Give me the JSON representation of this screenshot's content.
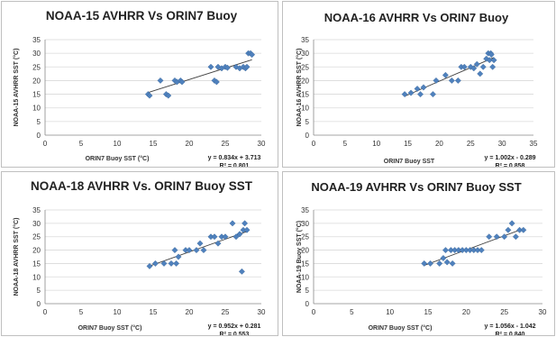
{
  "chart_data": [
    {
      "type": "scatter",
      "title": "NOAA-15 AVHRR Vs ORIN7 Buoy",
      "xlabel": "ORIN7 Buoy SST (°C)",
      "ylabel": "NOAA-15 AVHRR SST (°C)",
      "xlim": [
        0,
        30
      ],
      "ylim": [
        0,
        35
      ],
      "xticks": [
        0,
        5,
        10,
        15,
        20,
        25,
        30
      ],
      "yticks": [
        0,
        5,
        10,
        15,
        20,
        25,
        30,
        35
      ],
      "trendline": {
        "slope": 0.834,
        "intercept": 3.713
      },
      "equation": "y = 0.834x + 3.713",
      "r2": "R² = 0.801",
      "marker_color": "#4f81bd",
      "points": [
        [
          14.3,
          15
        ],
        [
          14.5,
          14.5
        ],
        [
          16,
          20
        ],
        [
          16.8,
          15
        ],
        [
          17.1,
          14.5
        ],
        [
          18,
          20
        ],
        [
          18.3,
          19.5
        ],
        [
          18.8,
          20
        ],
        [
          19,
          19.5
        ],
        [
          23,
          25
        ],
        [
          23.5,
          20
        ],
        [
          23.8,
          19.5
        ],
        [
          24,
          25
        ],
        [
          24.5,
          24.5
        ],
        [
          25,
          25
        ],
        [
          25.3,
          24.7
        ],
        [
          26.5,
          25
        ],
        [
          27,
          24.5
        ],
        [
          27.5,
          25
        ],
        [
          27.8,
          24.5
        ],
        [
          28,
          25
        ],
        [
          28.2,
          30
        ],
        [
          28.5,
          30
        ],
        [
          28.7,
          29.5
        ]
      ]
    },
    {
      "type": "scatter",
      "title": "NOAA-16 AVHRR Vs ORIN7 Buoy",
      "xlabel": "ORIN7 Buoy SST",
      "ylabel": "NOAA-16 AVHRR SST (°C)",
      "xlim": [
        0,
        35
      ],
      "ylim": [
        0,
        35
      ],
      "xticks": [
        0,
        5,
        10,
        15,
        20,
        25,
        30,
        35
      ],
      "yticks": [
        0,
        5,
        10,
        15,
        20,
        25,
        30,
        35
      ],
      "trendline": {
        "slope": 1.002,
        "intercept": -0.289
      },
      "equation": "y = 1.002x - 0.289",
      "r2": "R² = 0.858",
      "marker_color": "#4f81bd",
      "points": [
        [
          14.5,
          15
        ],
        [
          15.5,
          15.5
        ],
        [
          16.5,
          17
        ],
        [
          17,
          15
        ],
        [
          17.5,
          17.5
        ],
        [
          19,
          15
        ],
        [
          19.5,
          20
        ],
        [
          21,
          22
        ],
        [
          22,
          20
        ],
        [
          23,
          20
        ],
        [
          23.5,
          25
        ],
        [
          24,
          25
        ],
        [
          25,
          25
        ],
        [
          25.5,
          24.5
        ],
        [
          26,
          26
        ],
        [
          26.5,
          22.5
        ],
        [
          27,
          25
        ],
        [
          27.5,
          28
        ],
        [
          27.8,
          30
        ],
        [
          28,
          27.5
        ],
        [
          28.2,
          30
        ],
        [
          28.5,
          25
        ],
        [
          28.7,
          27.5
        ],
        [
          28.3,
          29.5
        ]
      ]
    },
    {
      "type": "scatter",
      "title": "NOAA-18 AVHRR Vs. ORIN7 Buoy SST",
      "xlabel": "ORIN7 Buoy SST (°C)",
      "ylabel": "NOAA-18 AVHRR SST (°C)",
      "xlim": [
        0,
        30
      ],
      "ylim": [
        0,
        35
      ],
      "xticks": [
        0,
        5,
        10,
        15,
        20,
        25,
        30
      ],
      "yticks": [
        0,
        5,
        10,
        15,
        20,
        25,
        30,
        35
      ],
      "trendline": {
        "slope": 0.952,
        "intercept": 0.281
      },
      "equation": "y = 0.952x + 0.281",
      "r2": "R² = 0.553",
      "marker_color": "#4f81bd",
      "points": [
        [
          14.5,
          14
        ],
        [
          15.3,
          15
        ],
        [
          16.5,
          15
        ],
        [
          17.5,
          15
        ],
        [
          18,
          20
        ],
        [
          18.2,
          15
        ],
        [
          18.5,
          17.5
        ],
        [
          19.5,
          20
        ],
        [
          20,
          20
        ],
        [
          21,
          20
        ],
        [
          21.5,
          22.5
        ],
        [
          22,
          20
        ],
        [
          23,
          25
        ],
        [
          23.5,
          25
        ],
        [
          24,
          22.5
        ],
        [
          24.5,
          25
        ],
        [
          25,
          25
        ],
        [
          26,
          30
        ],
        [
          26.5,
          25
        ],
        [
          27,
          26
        ],
        [
          27.3,
          12
        ],
        [
          27.5,
          27.5
        ],
        [
          27.7,
          30
        ],
        [
          28,
          27.5
        ]
      ]
    },
    {
      "type": "scatter",
      "title": "NOAA-19 AVHRR Vs ORIN7 Buoy SST",
      "xlabel": "ORIN7 Buoy SST (°C)",
      "ylabel": "NOAA-19 Buoy SST (°C)",
      "xlim": [
        0,
        30
      ],
      "ylim": [
        0,
        35
      ],
      "xticks": [
        0,
        5,
        10,
        15,
        20,
        25,
        30
      ],
      "yticks": [
        0,
        5,
        10,
        15,
        20,
        25,
        30,
        35
      ],
      "trendline": {
        "slope": 1.056,
        "intercept": -1.042
      },
      "equation": "y = 1.056x - 1.042",
      "r2": "R² = 0.840",
      "marker_color": "#4f81bd",
      "points": [
        [
          14.5,
          15
        ],
        [
          15.3,
          15
        ],
        [
          16.5,
          15
        ],
        [
          17,
          17
        ],
        [
          17.3,
          20
        ],
        [
          17.5,
          15.5
        ],
        [
          18,
          20
        ],
        [
          18.2,
          15
        ],
        [
          18.5,
          20
        ],
        [
          19,
          20
        ],
        [
          19.5,
          20
        ],
        [
          20,
          20
        ],
        [
          20.5,
          20
        ],
        [
          21,
          20
        ],
        [
          21.5,
          20
        ],
        [
          22,
          20
        ],
        [
          23,
          25
        ],
        [
          24,
          25
        ],
        [
          25,
          25
        ],
        [
          25.5,
          27.5
        ],
        [
          26,
          30
        ],
        [
          26.5,
          25
        ],
        [
          27,
          27.5
        ],
        [
          27.5,
          27.5
        ]
      ]
    }
  ]
}
